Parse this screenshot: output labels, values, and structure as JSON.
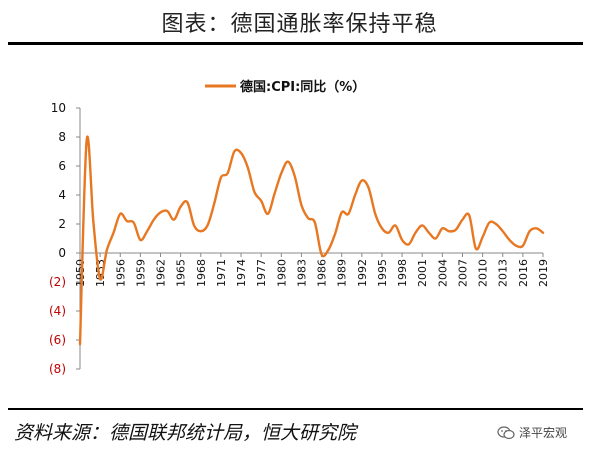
{
  "title": "图表：德国通胀率保持平稳",
  "source": "资料来源：德国联邦统计局，恒大研究院",
  "watermark": {
    "text": "泽平宏观",
    "icon": "wechat-icon"
  },
  "colors": {
    "line": "#E87722",
    "negative_tick": "#C00000",
    "axis": "#888888"
  },
  "chart_data": {
    "type": "line",
    "title": "",
    "xlabel": "",
    "ylabel": "",
    "ylim": [
      -8,
      10
    ],
    "grid": false,
    "legend_position": "top-center",
    "y_ticks": [
      {
        "value": 10,
        "label": "10"
      },
      {
        "value": 8,
        "label": "8"
      },
      {
        "value": 6,
        "label": "6"
      },
      {
        "value": 4,
        "label": "4"
      },
      {
        "value": 2,
        "label": "2"
      },
      {
        "value": 0,
        "label": "0"
      },
      {
        "value": -2,
        "label": "(2)"
      },
      {
        "value": -4,
        "label": "(4)"
      },
      {
        "value": -6,
        "label": "(6)"
      },
      {
        "value": -8,
        "label": "(8)"
      }
    ],
    "x_tick_labels": [
      "1950",
      "1953",
      "1956",
      "1959",
      "1962",
      "1965",
      "1968",
      "1971",
      "1974",
      "1977",
      "1980",
      "1983",
      "1986",
      "1989",
      "1992",
      "1995",
      "1998",
      "2001",
      "2004",
      "2007",
      "2010",
      "2013",
      "2016",
      "2019"
    ],
    "series": [
      {
        "name": "德国:CPI:同比（%）",
        "x": [
          1950,
          1951,
          1952,
          1953,
          1954,
          1955,
          1956,
          1957,
          1958,
          1959,
          1960,
          1961,
          1962,
          1963,
          1964,
          1965,
          1966,
          1967,
          1968,
          1969,
          1970,
          1971,
          1972,
          1973,
          1974,
          1975,
          1976,
          1977,
          1978,
          1979,
          1980,
          1981,
          1982,
          1983,
          1984,
          1985,
          1986,
          1987,
          1988,
          1989,
          1990,
          1991,
          1992,
          1993,
          1994,
          1995,
          1996,
          1997,
          1998,
          1999,
          2000,
          2001,
          2002,
          2003,
          2004,
          2005,
          2006,
          2007,
          2008,
          2009,
          2010,
          2011,
          2012,
          2013,
          2014,
          2015,
          2016,
          2017,
          2018,
          2019
        ],
        "values": [
          -6.3,
          7.8,
          2.1,
          -1.8,
          0.2,
          1.4,
          2.7,
          2.2,
          2.1,
          0.9,
          1.5,
          2.3,
          2.8,
          2.9,
          2.3,
          3.2,
          3.5,
          1.9,
          1.5,
          1.9,
          3.4,
          5.2,
          5.5,
          7.0,
          6.9,
          5.9,
          4.2,
          3.6,
          2.7,
          4.1,
          5.5,
          6.3,
          5.3,
          3.3,
          2.4,
          2.1,
          -0.1,
          0.2,
          1.3,
          2.8,
          2.7,
          4.0,
          5.0,
          4.5,
          2.7,
          1.7,
          1.4,
          1.9,
          0.9,
          0.6,
          1.4,
          1.9,
          1.4,
          1.0,
          1.7,
          1.5,
          1.6,
          2.3,
          2.6,
          0.3,
          1.1,
          2.1,
          2.0,
          1.5,
          0.9,
          0.5,
          0.5,
          1.5,
          1.7,
          1.4
        ]
      }
    ]
  }
}
